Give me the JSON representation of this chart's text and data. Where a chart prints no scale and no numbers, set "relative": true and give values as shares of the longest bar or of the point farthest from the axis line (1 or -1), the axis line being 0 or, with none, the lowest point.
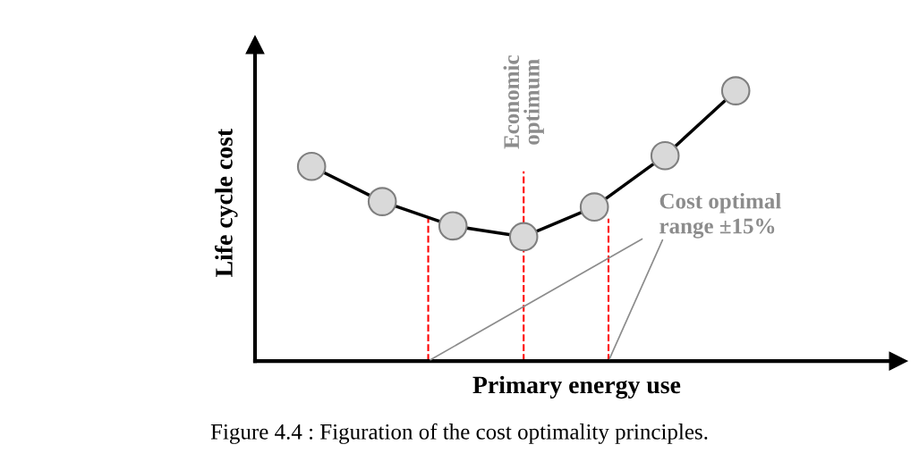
{
  "chart_data": {
    "type": "line",
    "relative": true,
    "xlabel": "Primary energy use",
    "ylabel": "Life cycle cost",
    "categories": [
      null,
      null,
      null,
      null,
      null,
      null,
      null
    ],
    "series": [
      {
        "color": "#000000",
        "values": [
          0.72,
          0.59,
          0.5,
          0.46,
          0.57,
          0.76,
          1.0
        ]
      }
    ],
    "marker": "circle",
    "line_style": "solid",
    "tick_labels": false,
    "annotations": [
      "Cost optimal range ±15%",
      "Figure 4.4 : Figuration of the cost optimality principles.",
      "Economic optimum"
    ]
  }
}
